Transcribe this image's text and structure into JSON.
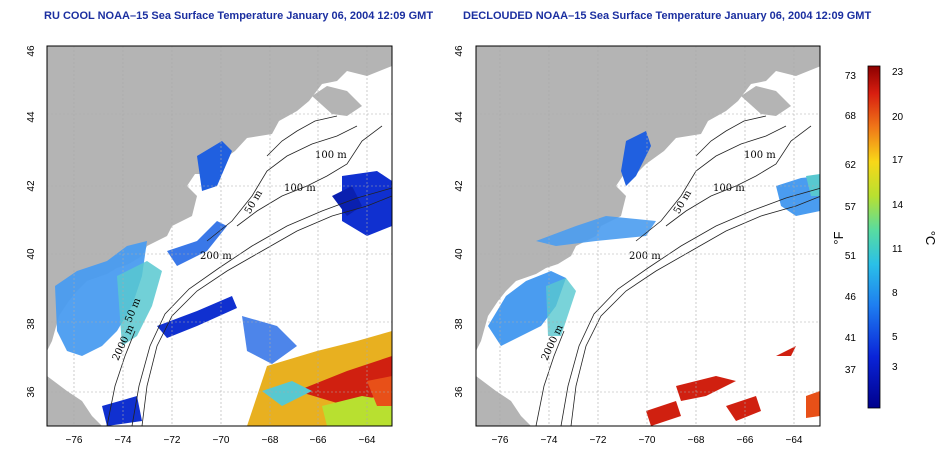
{
  "titles": {
    "left": "RU COOL NOAA–15 Sea Surface Temperature January 06, 2004 12:09 GMT",
    "right": "DECLOUDED NOAA–15 Sea Surface Temperature January 06, 2004 12:09 GMT"
  },
  "axes": {
    "lat_ticks": [
      "46",
      "44",
      "42",
      "40",
      "38",
      "36"
    ],
    "lon_ticks": [
      "−76",
      "−74",
      "−72",
      "−70",
      "−68",
      "−66",
      "−64"
    ],
    "lat_range": [
      35,
      46
    ],
    "lon_range": [
      -77,
      -63
    ]
  },
  "contour_labels": {
    "m100": "100 m",
    "m50": "50 m",
    "m200": "200 m",
    "m2000": "2000 m"
  },
  "colorbar": {
    "fahrenheit_ticks": [
      "73",
      "68",
      "62",
      "57",
      "51",
      "46",
      "41",
      "37"
    ],
    "celsius_ticks": [
      "23",
      "20",
      "17",
      "14",
      "11",
      "8",
      "5",
      "3"
    ],
    "unit_f": "°F",
    "unit_c": "°C"
  },
  "colors": {
    "land": "#b4b4b4",
    "cold": "#1030d0",
    "cool": "#4a9cf0",
    "mid": "#58c8d0",
    "warm": "#e8b020",
    "hot": "#d02010"
  }
}
